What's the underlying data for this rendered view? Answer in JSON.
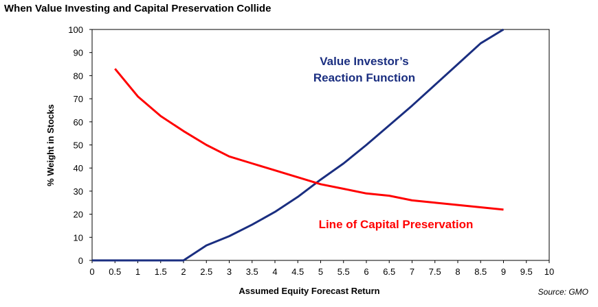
{
  "chart_data": {
    "type": "line",
    "title": "When Value Investing and Capital Preservation Collide",
    "xlabel": "Assumed Equity Forecast Return",
    "ylabel": "% Weight in Stocks",
    "xlim": [
      0,
      10
    ],
    "ylim": [
      0,
      100
    ],
    "x_ticks": [
      "0",
      "0.5",
      "1",
      "1.5",
      "2",
      "2.5",
      "3",
      "3.5",
      "4",
      "4.5",
      "5",
      "5.5",
      "6",
      "6.5",
      "7",
      "7.5",
      "8",
      "8.5",
      "9",
      "9.5",
      "10"
    ],
    "y_ticks": [
      "0",
      "10",
      "20",
      "30",
      "40",
      "50",
      "60",
      "70",
      "80",
      "90",
      "100"
    ],
    "grid": false,
    "legend": "none",
    "series": [
      {
        "name": "Value Investor's Reaction Function",
        "color": "#1a2e80",
        "x": [
          0,
          0.5,
          1,
          1.5,
          2,
          2.5,
          3,
          3.5,
          4,
          4.5,
          5,
          5.5,
          6,
          6.5,
          7,
          7.5,
          8,
          8.5,
          9
        ],
        "y": [
          0,
          0,
          0,
          0,
          0,
          6.5,
          10.5,
          15.5,
          21,
          27.5,
          35,
          42,
          50,
          58.5,
          67,
          76,
          85,
          94,
          100
        ]
      },
      {
        "name": "Line of Capital Preservation",
        "color": "#ff0000",
        "x": [
          0.5,
          1,
          1.5,
          2,
          2.5,
          3,
          3.5,
          4,
          4.5,
          5,
          5.5,
          6,
          6.5,
          7,
          7.5,
          8,
          8.5,
          9
        ],
        "y": [
          83,
          71,
          62.5,
          56,
          50,
          45,
          42,
          39,
          36,
          33,
          31,
          29,
          28,
          26,
          25,
          24,
          23,
          22
        ]
      }
    ],
    "annotations": [
      {
        "text": "Value Investor’s",
        "color": "#1a2e80"
      },
      {
        "text": "Reaction Function",
        "color": "#1a2e80"
      },
      {
        "text": "Line of Capital Preservation",
        "color": "#ff0000"
      }
    ],
    "source": "Source: GMO"
  }
}
